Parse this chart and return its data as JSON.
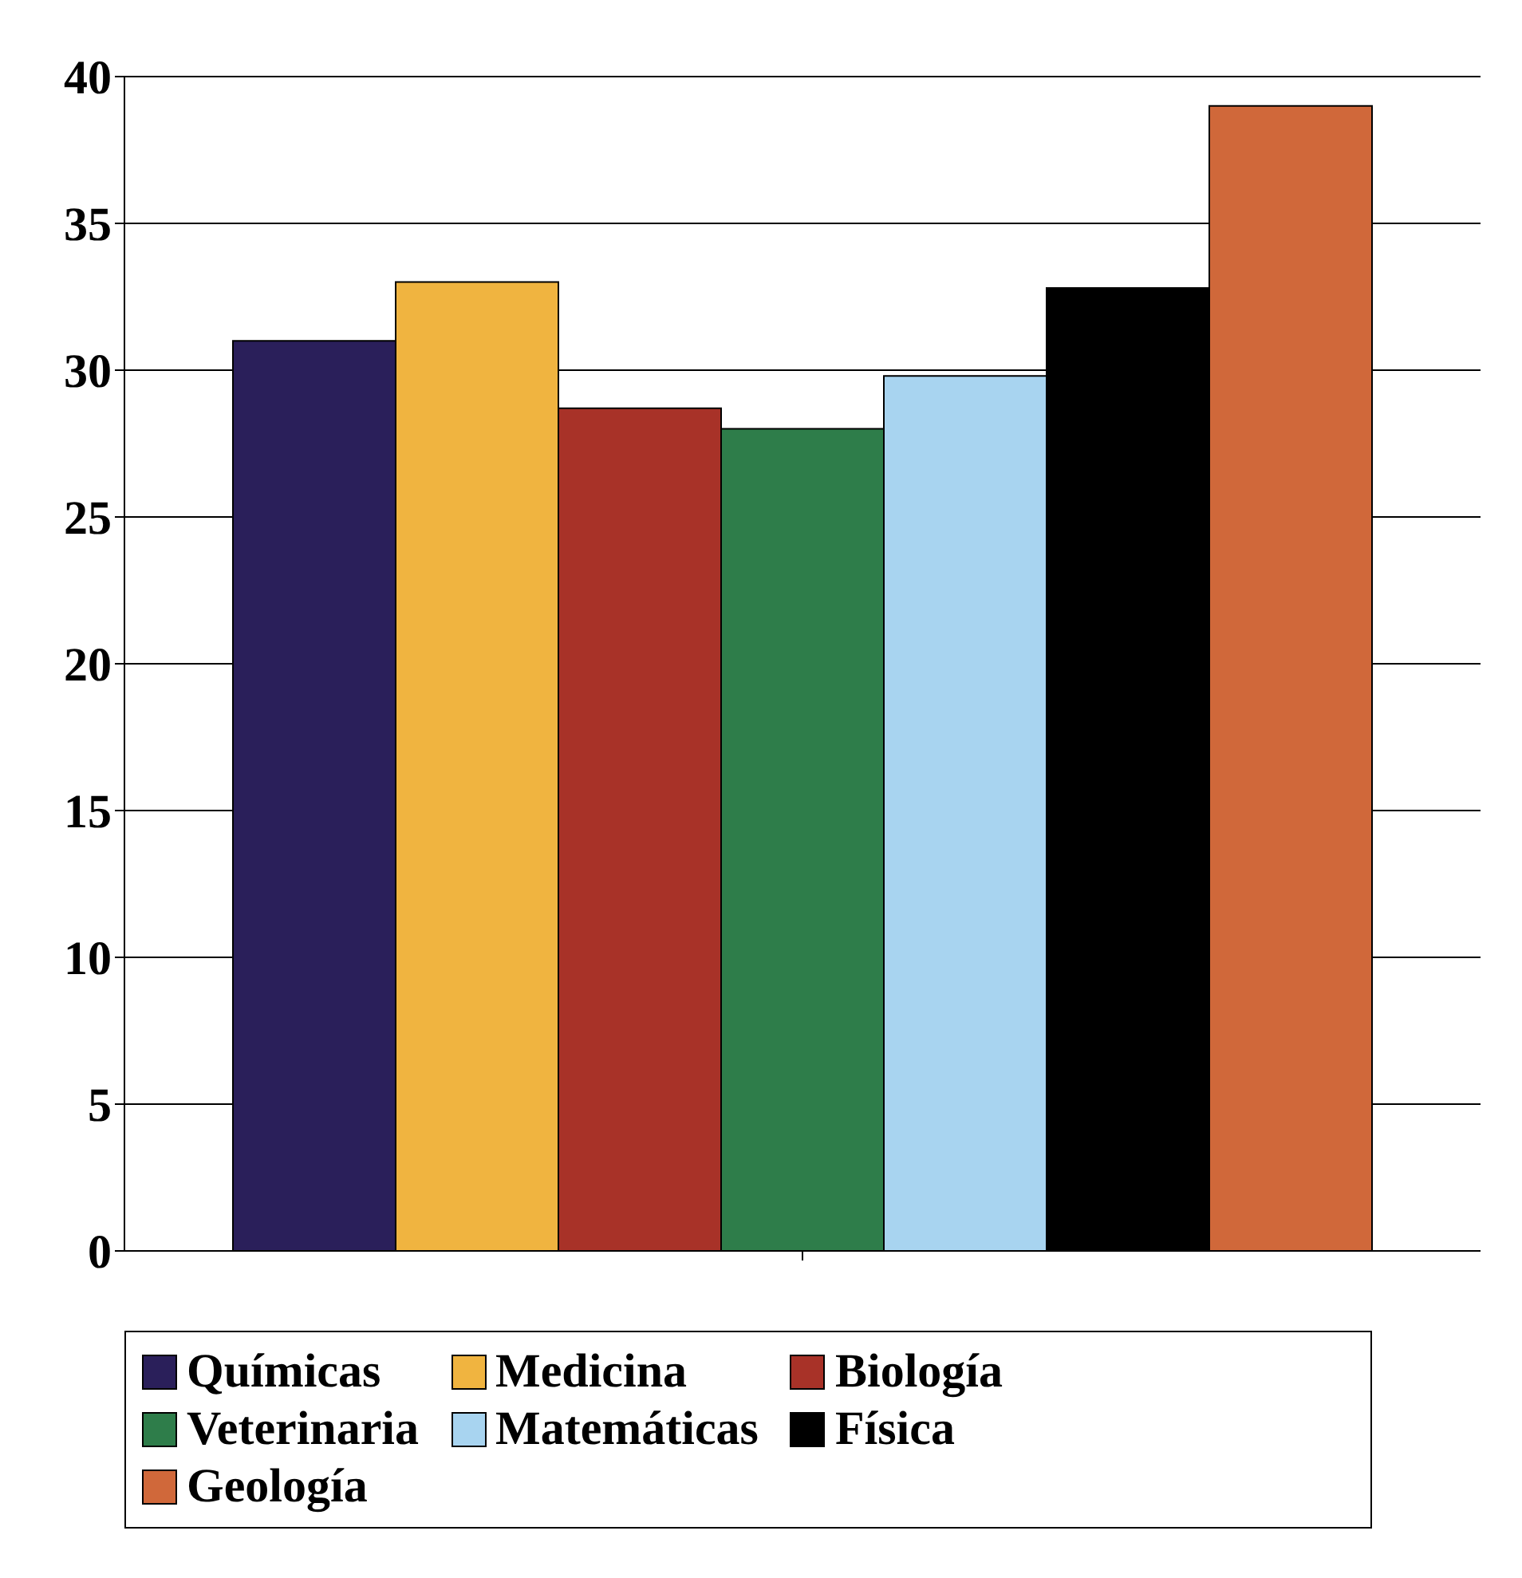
{
  "chart_data": {
    "type": "bar",
    "categories": [
      null
    ],
    "series": [
      {
        "name": "Químicas",
        "color": "#2a1f5a",
        "values": [
          31
        ]
      },
      {
        "name": "Medicina",
        "color": "#f0b440",
        "values": [
          33
        ]
      },
      {
        "name": "Biología",
        "color": "#a83228",
        "values": [
          28.7
        ]
      },
      {
        "name": "Veterinaria",
        "color": "#2e7d4a",
        "values": [
          28
        ]
      },
      {
        "name": "Matemáticas",
        "color": "#a8d4f0",
        "values": [
          29.8
        ]
      },
      {
        "name": "Física",
        "color": "#000000",
        "values": [
          32.8
        ]
      },
      {
        "name": "Geología",
        "color": "#d0683a",
        "values": [
          39
        ]
      }
    ],
    "ylim": [
      0,
      40
    ],
    "yticks": [
      0,
      5,
      10,
      15,
      20,
      25,
      30,
      35,
      40
    ],
    "grid": "y",
    "legend": "bottom"
  }
}
